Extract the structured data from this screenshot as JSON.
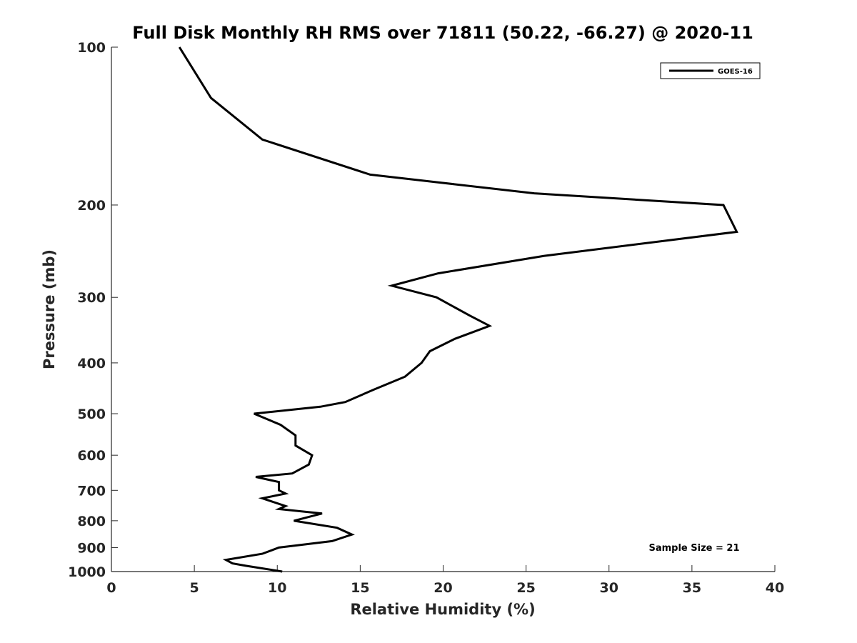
{
  "chart_data": {
    "type": "line",
    "title": "Full Disk Monthly RH RMS over 71811 (50.22, -66.27) @ 2020-11",
    "xlabel": "Relative Humidity (%)",
    "ylabel": "Pressure (mb)",
    "xlim": [
      0,
      40
    ],
    "ylim": [
      100,
      1000
    ],
    "y_scale": "log",
    "y_reversed": true,
    "x_ticks": [
      0,
      5,
      10,
      15,
      20,
      25,
      30,
      35,
      40
    ],
    "y_ticks": [
      100,
      200,
      300,
      400,
      500,
      600,
      700,
      800,
      900,
      1000
    ],
    "grid": false,
    "legend_position": "top-right",
    "annotation": "Sample Size = 21",
    "series": [
      {
        "name": "GOES-16",
        "color": "#000000",
        "points": [
          [
            4.1,
            100
          ],
          [
            6.0,
            125
          ],
          [
            9.1,
            150
          ],
          [
            15.6,
            175
          ],
          [
            25.5,
            190
          ],
          [
            36.9,
            200
          ],
          [
            37.7,
            225
          ],
          [
            26.1,
            250
          ],
          [
            19.7,
            270
          ],
          [
            16.9,
            285
          ],
          [
            19.6,
            300
          ],
          [
            21.6,
            325
          ],
          [
            22.8,
            340
          ],
          [
            20.7,
            360
          ],
          [
            19.2,
            380
          ],
          [
            18.7,
            400
          ],
          [
            17.7,
            425
          ],
          [
            15.8,
            450
          ],
          [
            14.1,
            475
          ],
          [
            12.6,
            485
          ],
          [
            8.6,
            500
          ],
          [
            10.2,
            525
          ],
          [
            11.1,
            550
          ],
          [
            11.1,
            575
          ],
          [
            12.1,
            600
          ],
          [
            11.9,
            625
          ],
          [
            10.9,
            650
          ],
          [
            8.7,
            660
          ],
          [
            10.1,
            675
          ],
          [
            10.1,
            700
          ],
          [
            10.5,
            710
          ],
          [
            9.1,
            725
          ],
          [
            10.5,
            750
          ],
          [
            10.1,
            760
          ],
          [
            12.7,
            775
          ],
          [
            11.0,
            800
          ],
          [
            13.6,
            825
          ],
          [
            14.5,
            850
          ],
          [
            13.3,
            875
          ],
          [
            10.1,
            900
          ],
          [
            9.1,
            925
          ],
          [
            6.9,
            950
          ],
          [
            7.3,
            965
          ],
          [
            8.1,
            975
          ],
          [
            10.3,
            1000
          ]
        ]
      }
    ]
  }
}
